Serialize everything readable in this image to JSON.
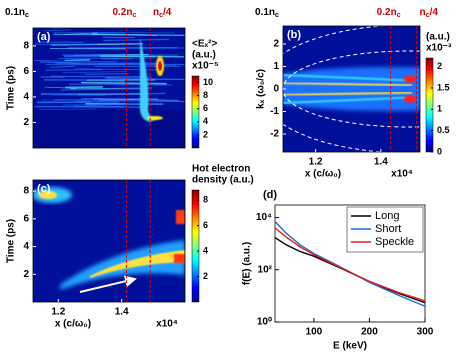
{
  "chart_data": [
    {
      "type": "heatmap",
      "panel_label": "(a)",
      "density_labels": [
        {
          "main": "0.1n",
          "sub": "c"
        },
        {
          "main": "0.2n",
          "sub": "c"
        },
        {
          "main": "n",
          "sub": "c",
          "tail": "/4"
        }
      ],
      "y_label": "Time (ps)",
      "xlim": [
        1.12,
        1.6
      ],
      "ylim": [
        0,
        9.4
      ],
      "yticks": [
        2,
        4,
        6,
        8
      ],
      "density_lines": [
        1.415,
        1.49
      ],
      "colorbar": {
        "title": [
          "<Eₓ²>",
          "(a.u.)"
        ],
        "scale": "x10⁻⁵",
        "lim": [
          0,
          11
        ],
        "ticks": [
          2,
          4,
          6,
          8,
          10
        ]
      }
    },
    {
      "type": "heatmap",
      "panel_label": "(b)",
      "density_labels": [
        {
          "main": "0.1n",
          "sub": "c"
        },
        {
          "main": "0.2n",
          "sub": "c"
        },
        {
          "main": "n",
          "sub": "c",
          "tail": "/4"
        }
      ],
      "y_label": "kₓ (ω₀/c)",
      "x_label": "x (c/ω₀)",
      "x_scale": "x10⁴",
      "xlim": [
        1.1,
        1.52
      ],
      "xticks": [
        1.2,
        1.4
      ],
      "ylim": [
        -2.8,
        2.8
      ],
      "yticks": [
        -2,
        -1,
        0,
        1,
        2
      ],
      "density_lines": [
        1.43,
        1.51
      ],
      "colorbar": {
        "title": [
          "(a.u.)"
        ],
        "scale": "x10⁻³",
        "lim": [
          0,
          2.2
        ],
        "ticks": [
          0,
          0.5,
          1,
          1.5,
          2
        ]
      }
    },
    {
      "type": "heatmap",
      "panel_label": "(c)",
      "y_label": "Time (ps)",
      "x_label": "x (c/ω₀)",
      "x_scale": "x10⁴",
      "xlim": [
        1.12,
        1.6
      ],
      "xticks": [
        1.2,
        1.4
      ],
      "ylim": [
        0,
        8.8
      ],
      "yticks": [
        2,
        4,
        6,
        8
      ],
      "density_lines": [
        1.415,
        1.49
      ],
      "colorbar": {
        "title": [
          "Hot electron",
          "density (a.u.)"
        ],
        "lim": [
          0,
          8.8
        ],
        "ticks": [
          2,
          4,
          6,
          8
        ]
      }
    },
    {
      "type": "line",
      "panel_label": "(d)",
      "x_label": "E (keV)",
      "y_label": "f(E) (a.u.)",
      "x": [
        30,
        50,
        75,
        100,
        150,
        200,
        250,
        300
      ],
      "series": [
        {
          "name": "Long",
          "color": "#000000",
          "values": [
            1700,
            900,
            500,
            330,
            110,
            35,
            13,
            5.5
          ]
        },
        {
          "name": "Short",
          "color": "#1f6fd0",
          "values": [
            7000,
            2500,
            900,
            420,
            120,
            33,
            11,
            4
          ]
        },
        {
          "name": "Speckle",
          "color": "#e02020",
          "values": [
            4000,
            1800,
            750,
            380,
            115,
            36,
            14,
            6.5
          ]
        }
      ],
      "xlim": [
        30,
        300
      ],
      "xticks": [
        100,
        200,
        300
      ],
      "ylim": [
        1,
        30000
      ],
      "log_y": true,
      "yticks": [
        {
          "value": 1,
          "label": "10⁰"
        },
        {
          "value": 100,
          "label": "10²"
        },
        {
          "value": 10000,
          "label": "10⁴"
        }
      ],
      "legend": "upper right"
    }
  ]
}
